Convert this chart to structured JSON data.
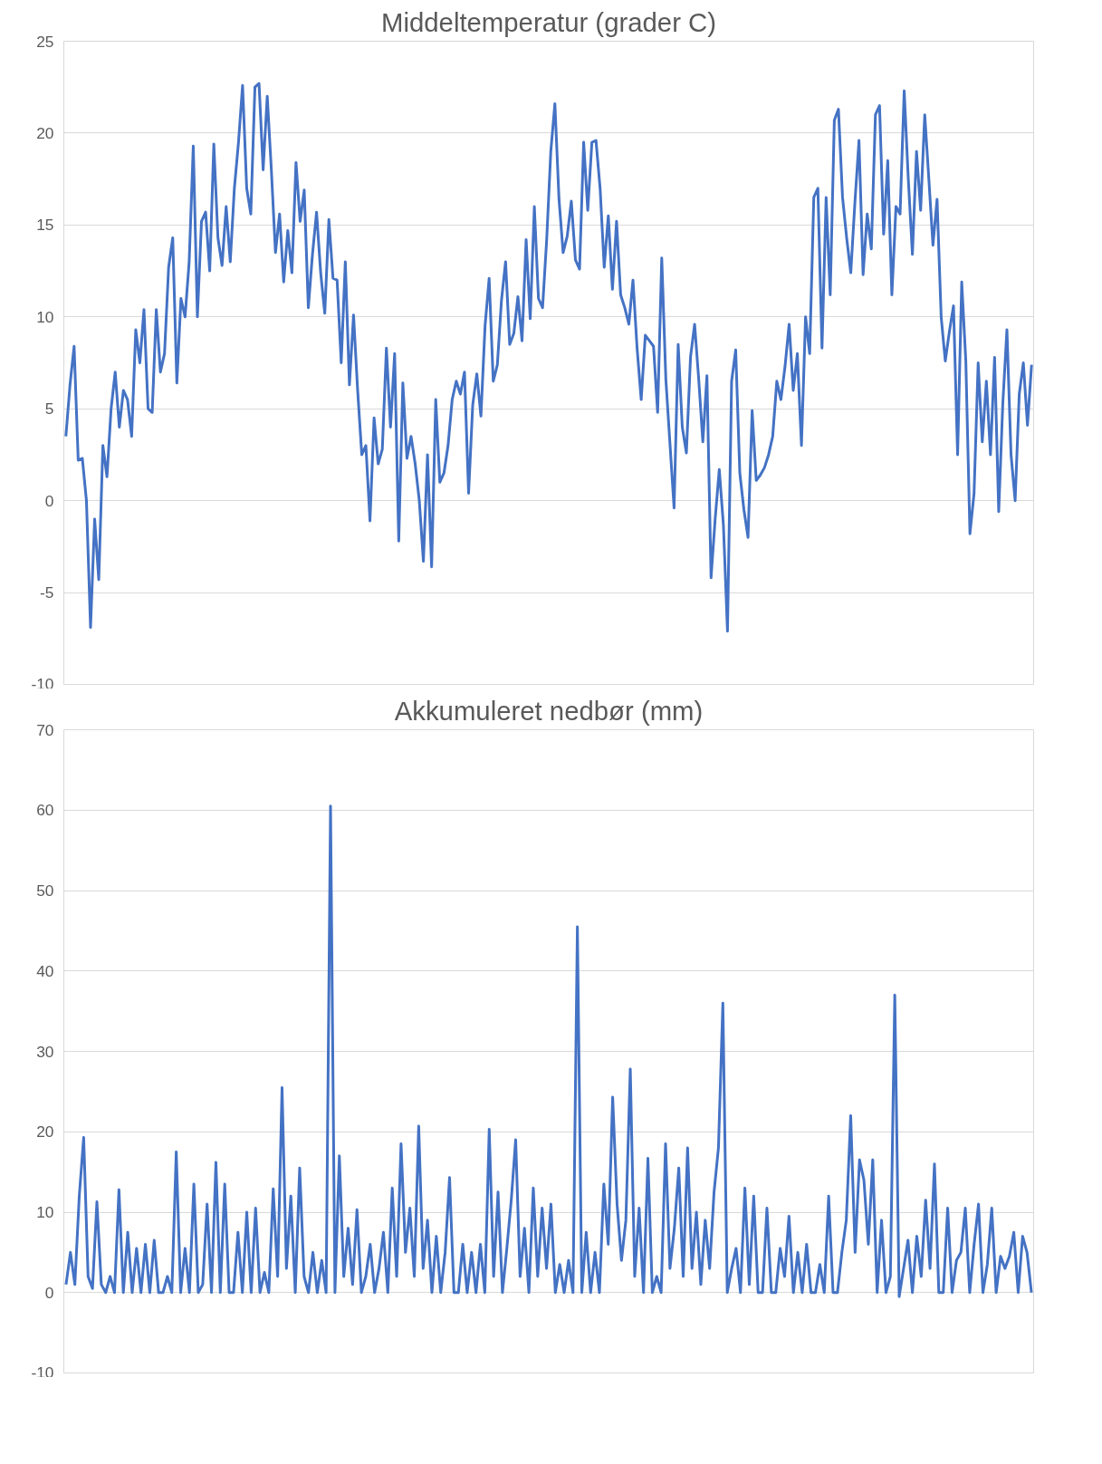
{
  "chart_data": [
    {
      "type": "line",
      "title": "Middeltemperatur (grader C)",
      "ylim": [
        -10,
        25
      ],
      "yticks": [
        -10,
        -5,
        0,
        5,
        10,
        15,
        20,
        25
      ],
      "grid": "y",
      "tick_labels": "y",
      "categories": [
        null,
        null,
        null,
        null,
        null,
        null,
        null,
        null,
        null,
        null,
        null,
        null,
        null,
        null,
        null,
        null,
        null,
        null,
        null,
        null,
        null,
        null,
        null,
        null,
        null,
        null,
        null,
        null,
        null,
        null,
        null,
        null,
        null,
        null,
        null,
        null,
        null,
        null,
        null,
        null,
        null,
        null,
        null,
        null,
        null,
        null,
        null,
        null,
        null,
        null,
        null,
        null,
        null,
        null,
        null,
        null,
        null,
        null,
        null,
        null,
        null,
        null,
        null,
        null,
        null,
        null,
        null,
        null,
        null,
        null,
        null,
        null,
        null,
        null,
        null,
        null,
        null,
        null,
        null,
        null,
        null,
        null,
        null,
        null,
        null,
        null,
        null,
        null,
        null,
        null,
        null,
        null,
        null,
        null,
        null,
        null,
        null,
        null,
        null,
        null,
        null,
        null,
        null,
        null,
        null,
        null,
        null,
        null,
        null,
        null,
        null,
        null,
        null,
        null,
        null,
        null,
        null,
        null,
        null,
        null,
        null,
        null,
        null,
        null,
        null,
        null,
        null,
        null,
        null,
        null,
        null,
        null,
        null,
        null,
        null,
        null,
        null,
        null,
        null,
        null,
        null,
        null,
        null,
        null,
        null,
        null,
        null,
        null,
        null,
        null,
        null,
        null,
        null,
        null,
        null,
        null,
        null,
        null,
        null,
        null,
        null,
        null,
        null,
        null,
        null,
        null,
        null,
        null,
        null,
        null,
        null,
        null,
        null,
        null,
        null,
        null,
        null,
        null,
        null,
        null,
        null,
        null,
        null,
        null,
        null,
        null,
        null,
        null,
        null,
        null,
        null,
        null,
        null,
        null,
        null,
        null,
        null,
        null,
        null,
        null,
        null,
        null,
        null,
        null,
        null,
        null,
        null,
        null,
        null,
        null,
        null,
        null,
        null,
        null,
        null,
        null,
        null,
        null,
        null,
        null,
        null,
        null,
        null,
        null,
        null,
        null,
        null,
        null,
        null,
        null,
        null,
        null,
        null,
        null,
        null,
        null
      ],
      "series": [
        {
          "color": "#4472c4",
          "values": [
            3.5,
            6.3,
            8.4,
            2.2,
            2.3,
            0,
            -6.9,
            -1,
            -4.3,
            3,
            1.3,
            5,
            7,
            4,
            6,
            5.5,
            3.5,
            9.3,
            7.5,
            10.4,
            5,
            4.8,
            10.4,
            7,
            8,
            12.7,
            14.3,
            6.4,
            11,
            10,
            13,
            19.3,
            10,
            15.2,
            15.7,
            12.5,
            19.4,
            14.3,
            12.8,
            16,
            13,
            17,
            19.5,
            22.6,
            17,
            15.6,
            22.5,
            22.7,
            18,
            22,
            18,
            13.5,
            15.6,
            11.9,
            14.7,
            12.4,
            18.4,
            15.2,
            16.9,
            10.5,
            13.4,
            15.7,
            12.4,
            10.2,
            15.3,
            12.1,
            12,
            7.5,
            13,
            6.3,
            10.1,
            6,
            2.5,
            3,
            -1.1,
            4.5,
            2,
            2.8,
            8.3,
            4,
            8,
            -2.2,
            6.4,
            2.3,
            3.5,
            2,
            0,
            -3.3,
            2.5,
            -3.6,
            5.5,
            1,
            1.5,
            3,
            5.5,
            6.5,
            5.8,
            7,
            0.4,
            5.2,
            6.9,
            4.6,
            9.5,
            12.1,
            6.5,
            7.4,
            10.9,
            13,
            8.5,
            9.1,
            11.1,
            8.7,
            14.2,
            9.9,
            16,
            11,
            10.5,
            14.2,
            19,
            21.6,
            16.4,
            13.5,
            14.4,
            16.3,
            13.1,
            12.6,
            19.5,
            15.8,
            19.5,
            19.6,
            17,
            12.7,
            15.5,
            11.5,
            15.2,
            11.2,
            10.5,
            9.6,
            12,
            8.3,
            5.5,
            9,
            8.7,
            8.4,
            4.8,
            13.2,
            6.6,
            3.1,
            -0.4,
            8.5,
            4,
            2.6,
            7.8,
            9.6,
            6.6,
            3.2,
            6.8,
            -4.2,
            -1,
            1.7,
            -1.3,
            -7.1,
            6.5,
            8.2,
            1.5,
            -0.5,
            -2,
            4.9,
            1.1,
            1.4,
            1.8,
            2.5,
            3.5,
            6.5,
            5.5,
            7.3,
            9.6,
            6,
            8,
            3,
            10,
            8,
            16.5,
            17,
            8.3,
            16.5,
            11.2,
            20.7,
            21.3,
            16.5,
            14.3,
            12.4,
            16.2,
            19.6,
            12.3,
            15.6,
            13.7,
            21,
            21.5,
            14.5,
            18.5,
            11.2,
            16,
            15.6,
            22.3,
            17.5,
            13.4,
            19,
            15.8,
            21,
            17.5,
            13.9,
            16.4,
            10,
            7.6,
            9.2,
            10.6,
            2.5,
            11.9,
            7.6,
            -1.8,
            0.4,
            7.5,
            3.2,
            6.5,
            2.5,
            7.8,
            -0.6,
            5.3,
            9.3,
            2.5,
            0,
            5.8,
            7.5,
            4.1,
            7.4
          ]
        }
      ]
    },
    {
      "type": "line",
      "title": "Akkumuleret nedbør (mm)",
      "ylim": [
        -10,
        70
      ],
      "yticks": [
        -10,
        0,
        10,
        20,
        30,
        40,
        50,
        60,
        70
      ],
      "grid": "y",
      "tick_labels": "y",
      "categories": [
        null,
        null,
        null,
        null,
        null,
        null,
        null,
        null,
        null,
        null,
        null,
        null,
        null,
        null,
        null,
        null,
        null,
        null,
        null,
        null,
        null,
        null,
        null,
        null,
        null,
        null,
        null,
        null,
        null,
        null,
        null,
        null,
        null,
        null,
        null,
        null,
        null,
        null,
        null,
        null,
        null,
        null,
        null,
        null,
        null,
        null,
        null,
        null,
        null,
        null,
        null,
        null,
        null,
        null,
        null,
        null,
        null,
        null,
        null,
        null,
        null,
        null,
        null,
        null,
        null,
        null,
        null,
        null,
        null,
        null,
        null,
        null,
        null,
        null,
        null,
        null,
        null,
        null,
        null,
        null,
        null,
        null,
        null,
        null,
        null,
        null,
        null,
        null,
        null,
        null,
        null,
        null,
        null,
        null,
        null,
        null,
        null,
        null,
        null,
        null,
        null,
        null,
        null,
        null,
        null,
        null,
        null,
        null,
        null,
        null,
        null,
        null,
        null,
        null,
        null,
        null,
        null,
        null,
        null,
        null,
        null,
        null,
        null,
        null,
        null,
        null,
        null,
        null,
        null,
        null,
        null,
        null,
        null,
        null,
        null,
        null,
        null,
        null,
        null,
        null,
        null,
        null,
        null,
        null,
        null,
        null,
        null,
        null,
        null,
        null,
        null,
        null,
        null,
        null,
        null,
        null,
        null,
        null,
        null,
        null,
        null,
        null,
        null,
        null,
        null,
        null,
        null,
        null,
        null,
        null,
        null,
        null,
        null,
        null,
        null,
        null,
        null,
        null,
        null,
        null,
        null,
        null,
        null,
        null,
        null,
        null,
        null,
        null,
        null,
        null,
        null,
        null,
        null,
        null,
        null,
        null,
        null,
        null,
        null,
        null,
        null,
        null,
        null,
        null,
        null,
        null,
        null,
        null,
        null,
        null,
        null,
        null,
        null,
        null,
        null,
        null,
        null,
        null,
        null,
        null
      ],
      "series": [
        {
          "color": "#4472c4",
          "values": [
            1,
            5,
            1,
            12,
            19.3,
            2,
            0.5,
            11.3,
            1,
            0,
            2,
            0,
            12.8,
            0,
            7.5,
            0,
            5.5,
            0,
            6,
            0,
            6.5,
            0,
            0,
            2,
            0,
            17.5,
            0,
            5.5,
            0,
            13.5,
            0,
            1,
            11,
            0,
            16.2,
            0,
            13.5,
            0,
            0,
            7.5,
            0,
            10,
            0,
            10.5,
            0,
            2.5,
            0,
            12.9,
            2,
            25.5,
            3,
            12,
            0,
            15.5,
            2,
            0,
            5,
            0,
            4,
            0,
            60.5,
            0,
            17,
            2,
            8,
            1,
            10.3,
            0,
            2,
            6,
            0,
            3,
            7.5,
            0,
            13,
            2,
            18.5,
            5,
            10.5,
            2,
            20.7,
            3,
            9,
            0,
            7,
            0,
            5,
            14.3,
            0,
            0,
            6,
            0,
            5,
            0,
            6,
            0,
            20.3,
            2,
            12.5,
            0,
            5.5,
            11.5,
            19,
            2,
            8,
            0,
            13,
            2,
            10.5,
            3,
            11,
            0,
            3.5,
            0,
            4,
            0,
            45.5,
            0,
            7.5,
            0,
            5,
            0,
            13.5,
            6,
            24.3,
            11,
            4,
            9,
            27.8,
            2,
            10.5,
            0,
            16.7,
            0,
            2,
            0,
            18.5,
            3,
            8,
            15.5,
            2,
            18,
            3,
            10,
            1,
            9,
            3,
            12.5,
            18,
            36,
            0,
            3,
            5.5,
            0,
            13,
            1,
            12,
            0,
            0,
            10.5,
            0,
            0,
            5.5,
            2,
            9.5,
            0,
            5,
            0,
            6,
            0,
            0,
            3.5,
            0,
            12,
            0,
            0,
            5,
            9,
            22,
            5,
            16.5,
            14,
            6,
            16.5,
            0,
            9,
            0,
            2,
            37,
            -0.5,
            3,
            6.5,
            0,
            7,
            2,
            11.5,
            3,
            16,
            0,
            0,
            10.5,
            0,
            4,
            5,
            10.5,
            0,
            6,
            11,
            0,
            3.5,
            10.5,
            0,
            4.5,
            3,
            4.5,
            7.5,
            0,
            7,
            5,
            0
          ]
        }
      ]
    }
  ]
}
